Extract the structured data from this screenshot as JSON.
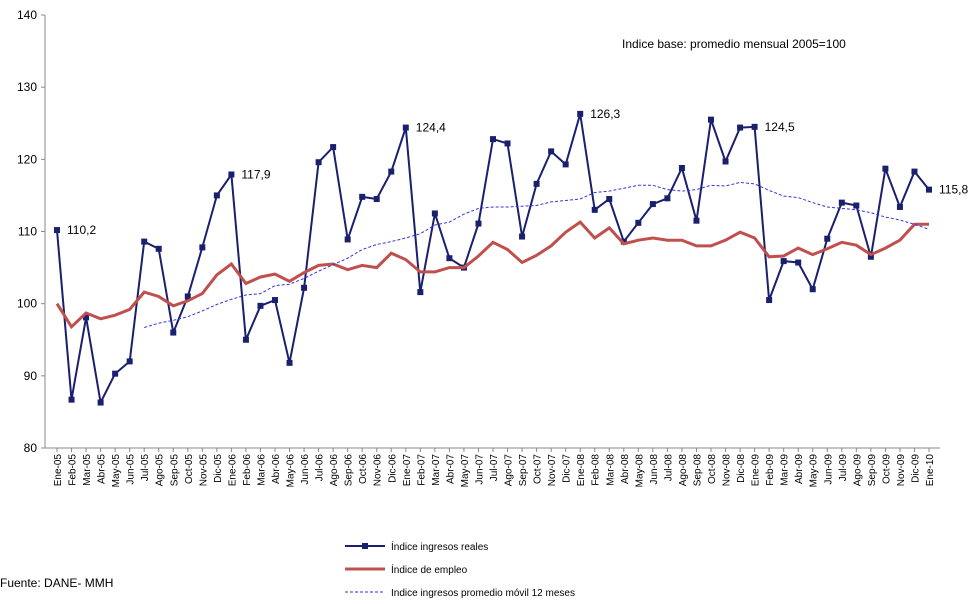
{
  "chart_data": {
    "type": "line",
    "annotation": "Indice base: promedio mensual 2005=100",
    "source": "Fuente: DANE- MMH",
    "categories": [
      "Ene-05",
      "Feb-05",
      "Mar-05",
      "Abr-05",
      "May-05",
      "Jun-05",
      "Jul-05",
      "Ago-05",
      "Sep-05",
      "Oct-05",
      "Nov-05",
      "Dic-05",
      "Ene-06",
      "Feb-06",
      "Mar-06",
      "Abr-06",
      "May-06",
      "Jun-06",
      "Jul-06",
      "Ago-06",
      "Sep-06",
      "Oct-06",
      "Nov-06",
      "Dic-06",
      "Ene-07",
      "Feb-07",
      "Mar-07",
      "Abr-07",
      "May-07",
      "Jun-07",
      "Jul-07",
      "Ago-07",
      "Sep-07",
      "Oct-07",
      "Nov-07",
      "Dic-07",
      "Ene-08",
      "Feb-08",
      "Mar-08",
      "Abr-08",
      "May-08",
      "Jun-08",
      "Jul-08",
      "Ago-08",
      "Sep-08",
      "Oct-08",
      "Nov-08",
      "Dic-08",
      "Ene-09",
      "Feb-09",
      "Mar-09",
      "Abr-09",
      "May-09",
      "Jun-09",
      "Jul-09",
      "Ago-09",
      "Sep-09",
      "Oct-09",
      "Nov-09",
      "Dic-09",
      "Ene-10"
    ],
    "series": [
      {
        "name": "Índice ingresos reales",
        "color": "#1a1f6e",
        "marker": "square",
        "values": [
          110.2,
          86.7,
          98.1,
          86.3,
          90.3,
          92.0,
          108.6,
          107.6,
          96.0,
          101.0,
          107.8,
          115.0,
          117.9,
          95.0,
          99.7,
          100.5,
          91.8,
          102.2,
          119.6,
          121.7,
          108.9,
          114.8,
          114.5,
          118.3,
          124.4,
          101.6,
          112.5,
          106.3,
          105.0,
          111.1,
          122.8,
          122.2,
          109.3,
          116.6,
          121.1,
          119.3,
          126.3,
          113.0,
          114.5,
          108.6,
          111.2,
          113.8,
          114.6,
          118.8,
          111.5,
          125.5,
          119.7,
          124.4,
          124.5,
          100.5,
          105.9,
          105.7,
          102.0,
          109.0,
          114.0,
          113.6,
          106.5,
          118.7,
          113.4,
          118.3,
          115.8
        ],
        "value_labels": [
          "110,2",
          null,
          null,
          null,
          null,
          null,
          null,
          null,
          null,
          null,
          null,
          null,
          "117,9",
          null,
          null,
          null,
          null,
          null,
          null,
          null,
          null,
          null,
          null,
          null,
          "124,4",
          null,
          null,
          null,
          null,
          null,
          null,
          null,
          null,
          null,
          null,
          null,
          "126,3",
          null,
          null,
          null,
          null,
          null,
          null,
          null,
          null,
          null,
          null,
          null,
          "124,5",
          null,
          null,
          null,
          null,
          null,
          null,
          null,
          null,
          null,
          null,
          null,
          "115,8"
        ]
      },
      {
        "name": "Índice de empleo",
        "color": "#c0504d",
        "values": [
          100.0,
          96.8,
          98.7,
          97.9,
          98.4,
          99.2,
          101.6,
          101.0,
          99.7,
          100.4,
          101.4,
          104.0,
          105.5,
          102.8,
          103.7,
          104.1,
          103.1,
          104.3,
          105.3,
          105.5,
          104.7,
          105.3,
          105.0,
          107.0,
          106.1,
          104.4,
          104.4,
          105.0,
          105.0,
          106.6,
          108.5,
          107.5,
          105.7,
          106.7,
          108.0,
          109.9,
          111.3,
          109.1,
          110.5,
          108.3,
          108.8,
          109.1,
          108.8,
          108.8,
          108.0,
          108.0,
          108.8,
          109.9,
          109.1,
          106.5,
          106.6,
          107.7,
          106.8,
          107.6,
          108.5,
          108.1,
          106.8,
          107.7,
          108.8,
          111.0,
          111.0
        ]
      },
      {
        "name": "Indice ingresos promedio  móvil 12 meses",
        "color": "#3333dd",
        "dashed": true,
        "values": [
          null,
          null,
          null,
          null,
          null,
          null,
          96.7,
          97.3,
          97.7,
          98.2,
          99.0,
          99.9,
          100.6,
          101.2,
          101.4,
          102.5,
          102.7,
          103.5,
          104.5,
          105.4,
          106.3,
          107.5,
          108.2,
          108.6,
          109.1,
          109.7,
          110.9,
          111.3,
          112.4,
          113.2,
          113.4,
          113.4,
          113.5,
          113.6,
          114.1,
          114.3,
          114.5,
          115.4,
          115.6,
          116.0,
          116.4,
          116.4,
          115.8,
          115.6,
          115.8,
          116.4,
          116.3,
          116.8,
          116.6,
          115.7,
          114.9,
          114.7,
          114.0,
          113.4,
          113.2,
          113.0,
          112.6,
          112.0,
          111.6,
          111.0,
          110.3
        ]
      }
    ],
    "ylim": [
      80,
      140
    ],
    "yticks": [
      80,
      90,
      100,
      110,
      120,
      130,
      140
    ],
    "grid": false
  }
}
